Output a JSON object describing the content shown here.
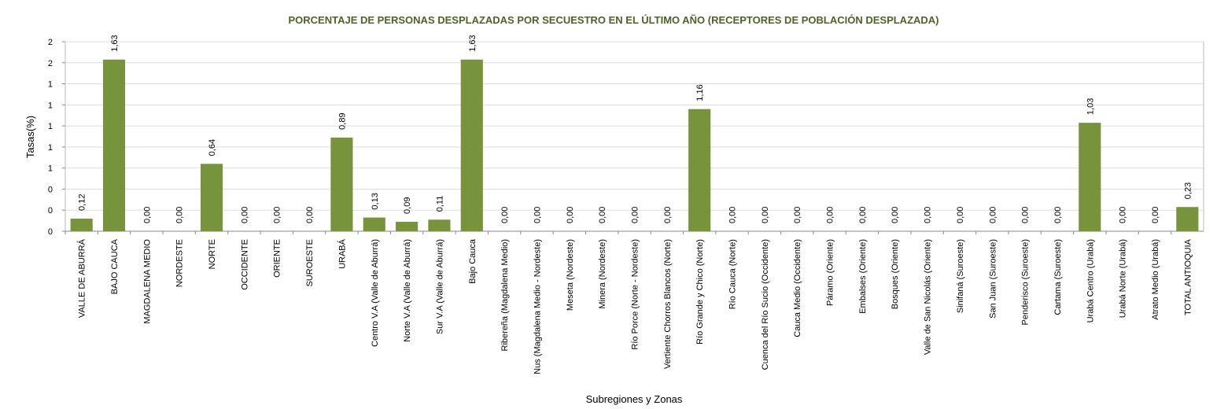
{
  "chart_data": {
    "type": "bar",
    "title": "PORCENTAJE DE PERSONAS DESPLAZADAS POR SECUESTRO EN EL ÚLTIMO AÑO (RECEPTORES DE POBLACIÓN DESPLAZADA)",
    "x_label": "Subregiones y Zonas",
    "y_label": "Tasas(%)",
    "categories": [
      "VALLE DE ABURRÁ",
      "BAJO CAUCA",
      "MAGDALENA MEDIO",
      "NORDESTE",
      "NORTE",
      "OCCIDENTE",
      "ORIENTE",
      "SUROESTE",
      "URABÁ",
      "Centro V.A (Valle de Aburrá)",
      "Norte V.A (Valle de Aburrá)",
      "Sur V.A (Valle de Aburrá)",
      "Bajo Cauca",
      "Ribereña  (Magdalena Medio)",
      "Nus  (Magdalena Medio - Nordeste)",
      "Meseta  (Nordeste)",
      "Minera  (Nordeste)",
      "Río Porce  (Norte - Nordeste)",
      "Vertiente Chorros Blancos (Norte)",
      "Río Grande y Chico  (Norte)",
      "Río Cauca  (Norte)",
      "Cuenca del Río Sucio  (Occidente)",
      "Cauca Medio  (Occidente)",
      "Páramo  (Oriente)",
      "Embalses (Oriente)",
      "Bosques  (Oriente)",
      "Valle de San Nicolás (Oriente)",
      "Sinifaná  (Suroeste)",
      "San Juan  (Suroeste)",
      "Penderisco  (Suroeste)",
      "Cartama  (Suroeste)",
      "Urabá Centro  (Urabá)",
      "Urabá Norte  (Urabá)",
      "Atrato Medio  (Urabá)",
      "TOTAL ANTIOQUIA"
    ],
    "values": [
      0.12,
      1.63,
      0,
      0,
      0.64,
      0,
      0,
      0,
      0.89,
      0.13,
      0.09,
      0.11,
      1.63,
      0,
      0,
      0,
      0,
      0,
      0,
      1.16,
      0,
      0,
      0,
      0,
      0,
      0,
      0,
      0,
      0,
      0,
      0,
      1.03,
      0,
      0,
      0.23
    ],
    "value_labels": [
      "0,12",
      "1,63",
      "0,00",
      "0,00",
      "0,64",
      "0,00",
      "0,00",
      "0,00",
      "0,89",
      "0,13",
      "0,09",
      "0,11",
      "1,63",
      "0,00",
      "0,00",
      "0,00",
      "0,00",
      "0,00",
      "0,00",
      "1,16",
      "0,00",
      "0,00",
      "0,00",
      "0,00",
      "0,00",
      "0,00",
      "0,00",
      "0,00",
      "0,00",
      "0,00",
      "0,00",
      "1,03",
      "0,00",
      "0,00",
      "0,23"
    ],
    "color": "#77933c",
    "ylim": [
      0,
      1.8
    ],
    "yticks": [
      0,
      {
        "value": 0.2,
        "label": "0"
      },
      {
        "value": 0.4,
        "label": "0"
      },
      {
        "value": 0.6,
        "label": "1"
      },
      {
        "value": 0.8,
        "label": "1"
      },
      {
        "value": 1.0,
        "label": "1"
      },
      {
        "value": 1.2,
        "label": "1"
      },
      {
        "value": 1.4,
        "label": "1"
      },
      {
        "value": 1.6,
        "label": "2"
      },
      {
        "value": 1.8,
        "label": "2"
      }
    ],
    "grid": true
  }
}
